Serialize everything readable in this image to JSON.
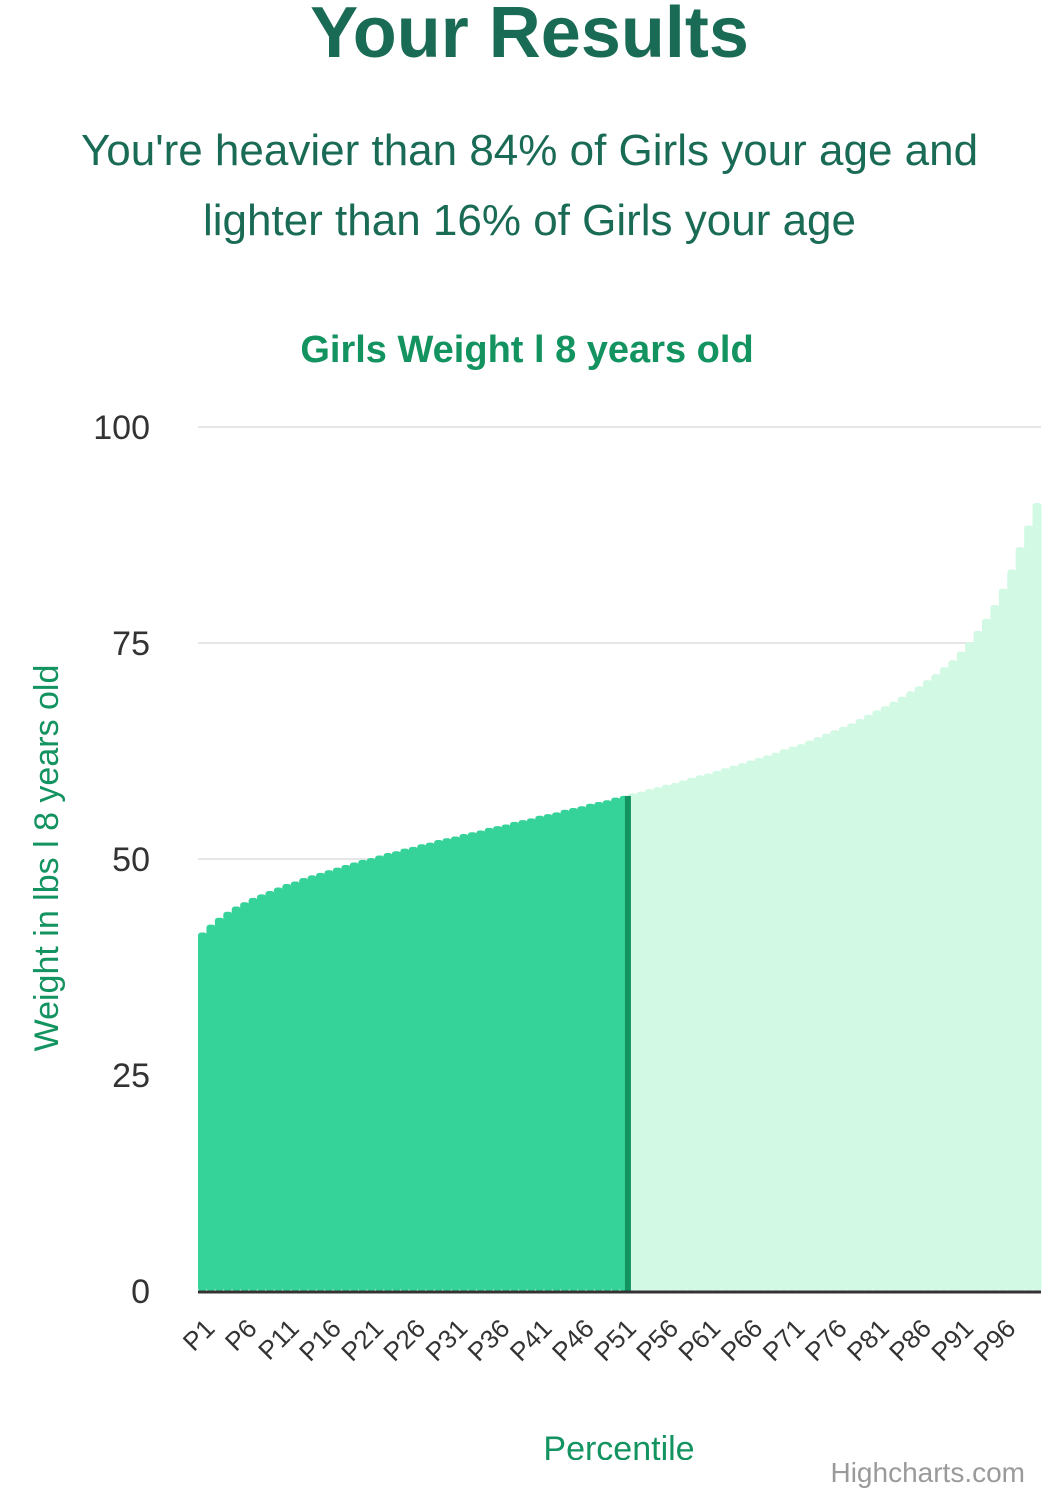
{
  "page": {
    "heading": "Your Results",
    "summary_line1": "You're heavier than 84% of Girls your age and",
    "summary_line2": "lighter than 16% of Girls your age",
    "credit": "Highcharts.com"
  },
  "colors": {
    "heading": "#1a6b55",
    "accent": "#12935f",
    "below_fill": "#35d399",
    "above_fill": "#d1f9e4",
    "marker": "#12935f",
    "grid": "#e6e6e6",
    "axis_line": "#333333"
  },
  "chart_data": {
    "type": "area",
    "title": "Girls Weight l 8 years old",
    "xlabel": "Percentile",
    "ylabel": "Weight in lbs l 8 years old",
    "ylim": [
      0,
      100
    ],
    "yticks": [
      0,
      25,
      50,
      75,
      100
    ],
    "grid": true,
    "x_tick_labels": [
      "P1",
      "P6",
      "P11",
      "P16",
      "P21",
      "P26",
      "P31",
      "P36",
      "P41",
      "P46",
      "P51",
      "P56",
      "P61",
      "P66",
      "P71",
      "P76",
      "P81",
      "P86",
      "P91",
      "P96"
    ],
    "series": [
      {
        "values": [
          41.5,
          42.4,
          43.2,
          43.9,
          44.5,
          45.0,
          45.5,
          45.9,
          46.3,
          46.7,
          47.1,
          47.4,
          47.8,
          48.1,
          48.4,
          48.7,
          49.0,
          49.3,
          49.6,
          49.9,
          50.1,
          50.4,
          50.7,
          50.9,
          51.2,
          51.4,
          51.7,
          51.9,
          52.2,
          52.4,
          52.6,
          52.9,
          53.1,
          53.3,
          53.6,
          53.8,
          54.0,
          54.3,
          54.5,
          54.7,
          55.0,
          55.2,
          55.4,
          55.7,
          55.9,
          56.1,
          56.4,
          56.6,
          56.8,
          57.1,
          57.3,
          57.6,
          57.8,
          58.1,
          58.3,
          58.6,
          58.8,
          59.1,
          59.4,
          59.7,
          59.9,
          60.2,
          60.5,
          60.8,
          61.1,
          61.4,
          61.7,
          62.0,
          62.3,
          62.7,
          63.0,
          63.3,
          63.7,
          64.1,
          64.5,
          64.9,
          65.3,
          65.7,
          66.2,
          66.7,
          67.2,
          67.7,
          68.2,
          68.8,
          69.4,
          70.0,
          70.7,
          71.4,
          72.2,
          73.0,
          74.0,
          75.1,
          76.4,
          77.8,
          79.4,
          81.3,
          83.5,
          86.1,
          88.6,
          91.2
        ]
      }
    ],
    "highlight": {
      "heavier_than_percent": 84,
      "lighter_than_percent": 16,
      "below_split_label": "P51",
      "marker_after_index": 51
    }
  }
}
